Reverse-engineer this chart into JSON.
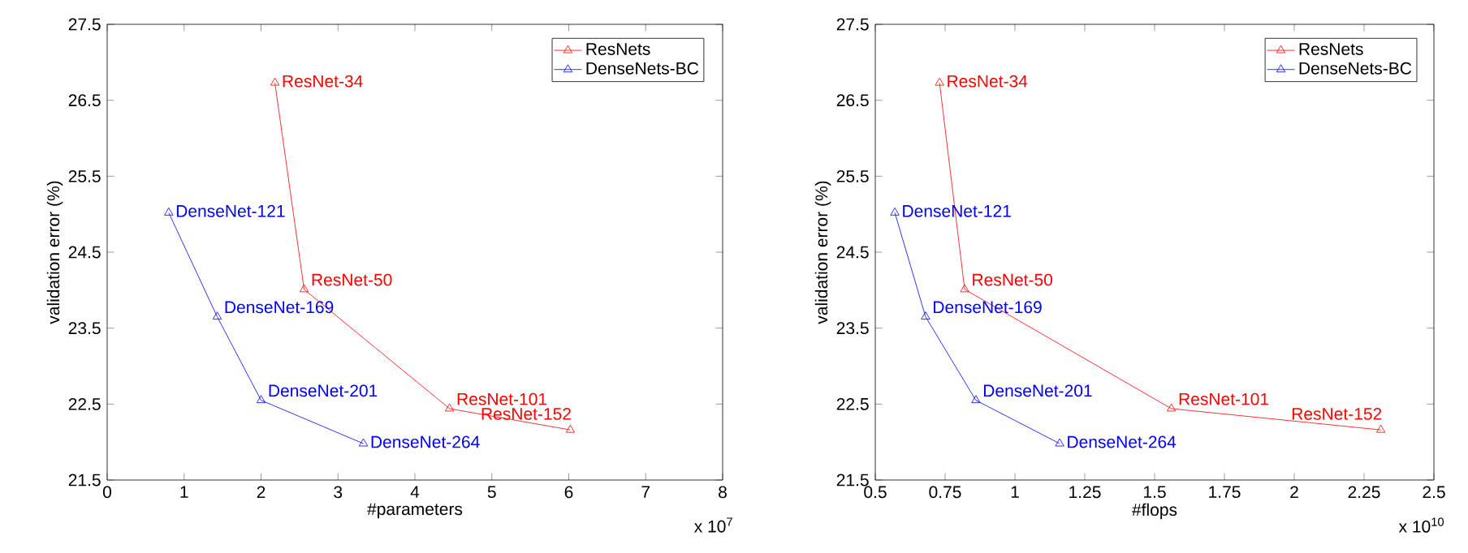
{
  "chart_data": [
    {
      "type": "line",
      "xlabel": "#parameters",
      "ylabel": "validation error (%)",
      "xlim": [
        0,
        8
      ],
      "ylim": [
        21.5,
        27.5
      ],
      "xticks": [
        0,
        1,
        2,
        3,
        4,
        5,
        6,
        7,
        8
      ],
      "yticks": [
        21.5,
        22.5,
        23.5,
        24.5,
        25.5,
        26.5,
        27.5
      ],
      "legend": "top right",
      "marker": "triangle",
      "grid": false,
      "series": [
        {
          "name": "ResNets",
          "color": "#ff0000",
          "x": [
            2.18,
            2.56,
            4.45,
            6.02
          ],
          "values": [
            26.73,
            24.01,
            22.44,
            22.16
          ]
        },
        {
          "name": "DenseNets-BC",
          "color": "#0000ff",
          "x": [
            0.8,
            1.43,
            2.0,
            3.33
          ],
          "values": [
            25.02,
            23.65,
            22.55,
            21.98
          ]
        }
      ],
      "annotations": [
        {
          "text": "ResNet-34",
          "x": 2.18,
          "y": 26.73
        },
        {
          "text": "ResNet-50",
          "x": 2.56,
          "y": 24.01
        },
        {
          "text": "ResNet-101",
          "x": 4.45,
          "y": 22.44
        },
        {
          "text": "ResNet-152",
          "x": 6.02,
          "y": 22.16
        },
        {
          "text": "DenseNet-121",
          "x": 0.8,
          "y": 25.02
        },
        {
          "text": "DenseNet-169",
          "x": 1.43,
          "y": 23.65
        },
        {
          "text": "DenseNet-201",
          "x": 2.0,
          "y": 22.55
        },
        {
          "text": "DenseNet-264",
          "x": 3.33,
          "y": 21.98
        },
        "x 10$^{7}$"
      ]
    },
    {
      "type": "line",
      "xlabel": "#flops",
      "ylabel": "validation error (%)",
      "xlim": [
        0.5,
        2.5
      ],
      "ylim": [
        21.5,
        27.5
      ],
      "xticks": [
        0.5,
        0.75,
        1,
        1.25,
        1.5,
        1.75,
        2,
        2.25,
        2.5
      ],
      "yticks": [
        21.5,
        22.5,
        23.5,
        24.5,
        25.5,
        26.5,
        27.5
      ],
      "legend": "top right",
      "marker": "triangle",
      "grid": false,
      "series": [
        {
          "name": "ResNets",
          "color": "#ff0000",
          "x": [
            0.73,
            0.82,
            1.56,
            2.31
          ],
          "values": [
            26.73,
            24.01,
            22.44,
            22.16
          ]
        },
        {
          "name": "DenseNets-BC",
          "color": "#0000ff",
          "x": [
            0.57,
            0.68,
            0.86,
            1.16
          ],
          "values": [
            25.02,
            23.65,
            22.55,
            21.98
          ]
        }
      ],
      "annotations": [
        {
          "text": "ResNet-34",
          "x": 0.73,
          "y": 26.73
        },
        {
          "text": "ResNet-50",
          "x": 0.82,
          "y": 24.01
        },
        {
          "text": "ResNet-101",
          "x": 1.56,
          "y": 22.44
        },
        {
          "text": "ResNet-152",
          "x": 2.31,
          "y": 22.16
        },
        {
          "text": "DenseNet-121",
          "x": 0.57,
          "y": 25.02
        },
        {
          "text": "DenseNet-169",
          "x": 0.68,
          "y": 23.65
        },
        {
          "text": "DenseNet-201",
          "x": 0.86,
          "y": 22.55
        },
        {
          "text": "DenseNet-264",
          "x": 1.16,
          "y": 21.98
        },
        "x 10$^{10}$"
      ]
    }
  ]
}
